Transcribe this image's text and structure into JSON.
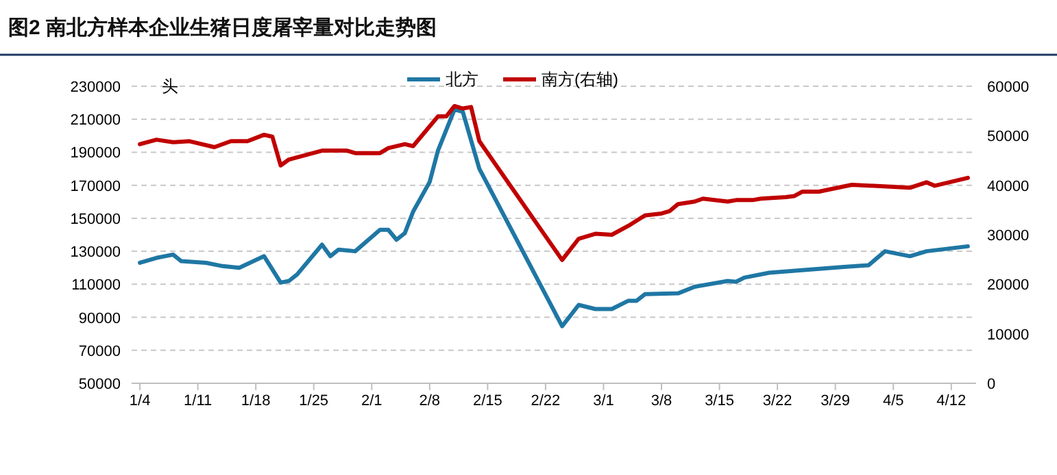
{
  "chart_data": {
    "type": "line",
    "title": "图2 南北方样本企业生猪日度屠宰量对比走势图",
    "ylabel": "头",
    "xlim": [
      "--01-03",
      "--04-15"
    ],
    "xticks": [
      {
        "value": "--01-04",
        "label": "1/4"
      },
      {
        "value": "--01-11",
        "label": "1/11"
      },
      {
        "value": "--01-18",
        "label": "1/18"
      },
      {
        "value": "--01-25",
        "label": "1/25"
      },
      {
        "value": "--02-01",
        "label": "2/1"
      },
      {
        "value": "--02-08",
        "label": "2/8"
      },
      {
        "value": "--02-15",
        "label": "2/15"
      },
      {
        "value": "--02-22",
        "label": "2/22"
      },
      {
        "value": "--03-01",
        "label": "3/1"
      },
      {
        "value": "--03-08",
        "label": "3/8"
      },
      {
        "value": "--03-15",
        "label": "3/15"
      },
      {
        "value": "--03-22",
        "label": "3/22"
      },
      {
        "value": "--03-29",
        "label": "3/29"
      },
      {
        "value": "--04-05",
        "label": "4/5"
      },
      {
        "value": "--04-12",
        "label": "4/12"
      }
    ],
    "ylim": [
      50000,
      230000
    ],
    "yticks": [
      50000,
      70000,
      90000,
      110000,
      130000,
      150000,
      170000,
      190000,
      210000,
      230000
    ],
    "y2lim": [
      0,
      60000
    ],
    "y2ticks": [
      0,
      10000,
      20000,
      30000,
      40000,
      50000,
      60000
    ],
    "grid": "y",
    "legend": "top",
    "series": [
      {
        "name": "北方",
        "color": "#1f77a4",
        "x": [
          "--01-04",
          "--01-06",
          "--01-07",
          "--01-08",
          "--01-09",
          "--01-12",
          "--01-14",
          "--01-16",
          "--01-19",
          "--01-21",
          "--01-22",
          "--01-23",
          "--01-26",
          "--01-27",
          "--01-28",
          "--01-30",
          "--02-02",
          "--02-03",
          "--02-04",
          "--02-05",
          "--02-06",
          "--02-08",
          "--02-09",
          "--02-11",
          "--02-12",
          "--02-14",
          "--02-24",
          "--02-26",
          "--02-28",
          "--03-02",
          "--03-04",
          "--03-05",
          "--03-06",
          "--03-10",
          "--03-12",
          "--03-16",
          "--03-17",
          "--03-18",
          "--03-21",
          "--03-26",
          "--03-30",
          "--04-02",
          "--04-04",
          "--04-07",
          "--04-09",
          "--04-14"
        ],
        "values": [
          123000,
          126000,
          127000,
          128000,
          124000,
          123000,
          121000,
          120000,
          127000,
          111000,
          112000,
          116000,
          134000,
          127000,
          131000,
          130000,
          143000,
          143000,
          137000,
          141000,
          154000,
          172000,
          191000,
          216000,
          214500,
          180000,
          84600,
          97500,
          95000,
          95000,
          100000,
          100000,
          104000,
          104500,
          108500,
          112000,
          111500,
          114000,
          117000,
          119000,
          120500,
          121500,
          130000,
          127000,
          130000,
          133000
        ]
      },
      {
        "name": "南方(右轴)",
        "color": "#c00000",
        "axis": "y2",
        "x": [
          "--01-04",
          "--01-06",
          "--01-08",
          "--01-10",
          "--01-13",
          "--01-15",
          "--01-17",
          "--01-19",
          "--01-20",
          "--01-21",
          "--01-22",
          "--01-26",
          "--01-27",
          "--01-29",
          "--01-30",
          "--02-02",
          "--02-03",
          "--02-05",
          "--02-06",
          "--02-09",
          "--02-10",
          "--02-11",
          "--02-12",
          "--02-13",
          "--02-14",
          "--02-24",
          "--02-26",
          "--02-28",
          "--03-02",
          "--03-04",
          "--03-06",
          "--03-08",
          "--03-09",
          "--03-10",
          "--03-12",
          "--03-13",
          "--03-16",
          "--03-17",
          "--03-19",
          "--03-20",
          "--03-23",
          "--03-24",
          "--03-25",
          "--03-27",
          "--03-31",
          "--04-07",
          "--04-09",
          "--04-10",
          "--04-14"
        ],
        "values": [
          48300,
          49200,
          48700,
          48900,
          47700,
          48900,
          48900,
          50200,
          49800,
          44000,
          45200,
          47000,
          47000,
          47000,
          46500,
          46500,
          47500,
          48300,
          47900,
          53900,
          53900,
          56000,
          55500,
          55800,
          48900,
          24900,
          29200,
          30200,
          30000,
          31800,
          33900,
          34300,
          34800,
          36200,
          36700,
          37300,
          36700,
          37000,
          37000,
          37300,
          37600,
          37800,
          38700,
          38700,
          40100,
          39500,
          40600,
          39900,
          41500
        ]
      }
    ]
  }
}
